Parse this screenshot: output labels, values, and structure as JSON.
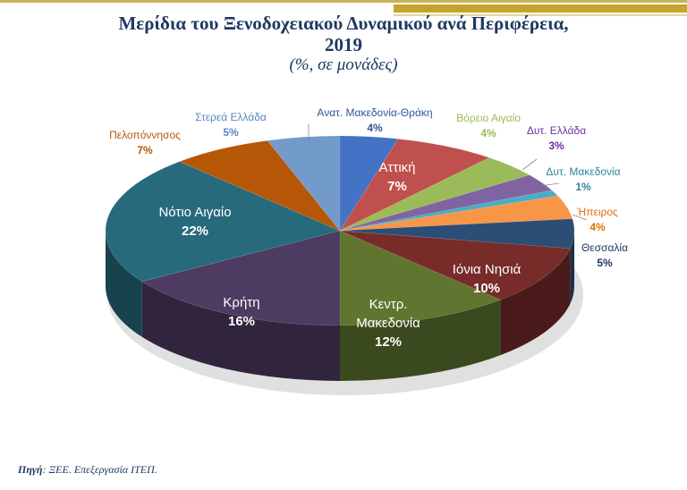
{
  "header": {
    "title_line1": "Μερίδια του Ξενοδοχειακού Δυναμικού ανά Περιφέρεια,",
    "title_line2": "2019",
    "subtitle": "(%, σε μονάδες)"
  },
  "footer": {
    "source_label": "Πηγή",
    "source_text": ": ΞΕΕ. Επεξεργασία ΙΤΕΠ."
  },
  "chart_data": {
    "type": "pie",
    "three_d": true,
    "unit": "%",
    "slices": [
      {
        "name": "Ανατ. Μακεδονία-Θράκη",
        "value": 4,
        "label": "4%",
        "color": "#4472c4",
        "label_color": "#2f5597"
      },
      {
        "name": "Αττική",
        "value": 7,
        "label": "7%",
        "color": "#c0504d",
        "label_color": "#ffffff"
      },
      {
        "name": "Βόρειο Αιγαίο",
        "value": 4,
        "label": "4%",
        "color": "#9bbb59",
        "label_color": "#9bbb59"
      },
      {
        "name": "Δυτ. Ελλάδα",
        "value": 3,
        "label": "3%",
        "color": "#8064a2",
        "label_color": "#7030a0"
      },
      {
        "name": "Δυτ. Μακεδονία",
        "value": 1,
        "label": "1%",
        "color": "#4bacc6",
        "label_color": "#31849b"
      },
      {
        "name": "Ήπειρος",
        "value": 4,
        "label": "4%",
        "color": "#f79646",
        "label_color": "#e36c09"
      },
      {
        "name": "Θεσσαλία",
        "value": 5,
        "label": "5%",
        "color": "#2c4d75",
        "label_color": "#1f3864"
      },
      {
        "name": "Ιόνια Νησιά",
        "value": 10,
        "label": "10%",
        "color": "#772c2a",
        "label_color": "#ffffff"
      },
      {
        "name": "Κεντρ. Μακεδονία",
        "value": 12,
        "label": "12%",
        "color": "#5f7530",
        "label_color": "#ffffff"
      },
      {
        "name": "Κρήτη",
        "value": 16,
        "label": "16%",
        "color": "#4d3b62",
        "label_color": "#ffffff"
      },
      {
        "name": "Νότιο Αιγαίο",
        "value": 22,
        "label": "22%",
        "color": "#276a7c",
        "label_color": "#ffffff"
      },
      {
        "name": "Πελοπόννησος",
        "value": 7,
        "label": "7%",
        "color": "#b65708",
        "label_color": "#b65708"
      },
      {
        "name": "Στερεά Ελλάδα",
        "value": 5,
        "label": "5%",
        "color": "#729aca",
        "label_color": "#5b86c5"
      }
    ]
  }
}
